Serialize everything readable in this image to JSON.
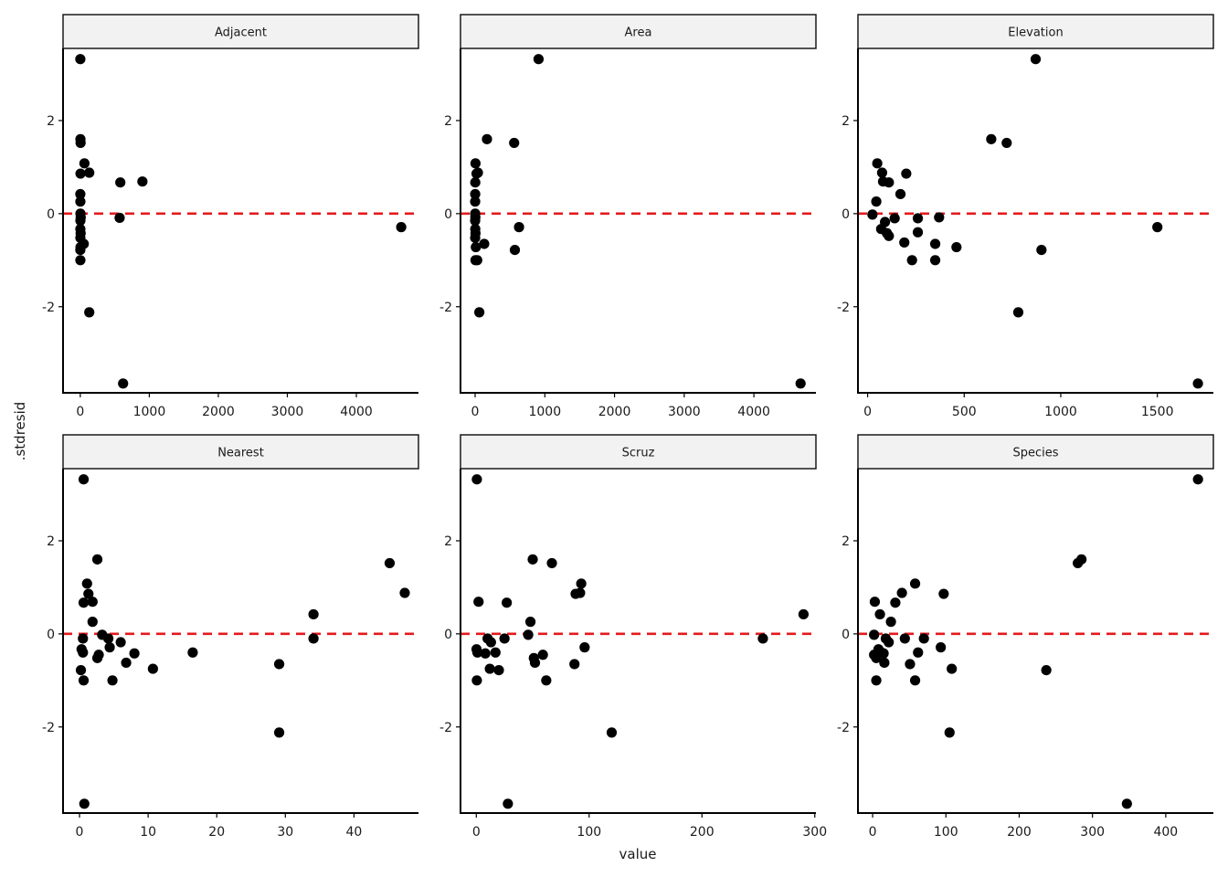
{
  "chart_data": {
    "type": "scatter",
    "xlabel": "value",
    "ylabel": ".stdresid",
    "ylim": [
      -3.85,
      3.55
    ],
    "y_ticks": [
      -2,
      0,
      2
    ],
    "y_tick_labels": [
      "-2",
      "0",
      "2"
    ],
    "reference_line": {
      "y": 0,
      "color": "#e31a1c",
      "style": "dashed"
    },
    "point_color": "#000000",
    "strip_color": "#f2f2f2",
    "grid": false,
    "facets": [
      {
        "label": "Adjacent",
        "xlim": [
          -250,
          4900
        ],
        "x_ticks": [
          0,
          1000,
          2000,
          3000,
          4000
        ],
        "x_tick_labels": [
          "0",
          "1000",
          "2000",
          "3000",
          "4000"
        ],
        "points": [
          [
            0.5,
            3.32
          ],
          [
            2,
            1.6
          ],
          [
            4,
            1.52
          ],
          [
            60,
            1.08
          ],
          [
            130,
            0.88
          ],
          [
            3,
            0.86
          ],
          [
            580,
            0.67
          ],
          [
            900,
            0.69
          ],
          [
            0.3,
            0.42
          ],
          [
            1,
            0.26
          ],
          [
            2,
            0.0
          ],
          [
            6,
            -0.08
          ],
          [
            570,
            -0.09
          ],
          [
            1.5,
            -0.15
          ],
          [
            0.8,
            -0.33
          ],
          [
            4650,
            -0.29
          ],
          [
            5,
            -0.42
          ],
          [
            1,
            -0.52
          ],
          [
            50,
            -0.65
          ],
          [
            3,
            -0.72
          ],
          [
            0.5,
            -0.78
          ],
          [
            1,
            -1.0
          ],
          [
            130,
            -2.12
          ],
          [
            620,
            -3.65
          ]
        ]
      },
      {
        "label": "Area",
        "xlim": [
          -210,
          4890
        ],
        "x_ticks": [
          0,
          1000,
          2000,
          3000,
          4000
        ],
        "x_tick_labels": [
          "0",
          "1000",
          "2000",
          "3000",
          "4000"
        ],
        "points": [
          [
            910,
            3.32
          ],
          [
            170,
            1.6
          ],
          [
            560,
            1.52
          ],
          [
            5,
            1.08
          ],
          [
            40,
            0.88
          ],
          [
            20,
            0.86
          ],
          [
            2,
            0.67
          ],
          [
            1,
            0.42
          ],
          [
            0.5,
            0.26
          ],
          [
            1,
            0.0
          ],
          [
            3,
            -0.08
          ],
          [
            0.2,
            -0.15
          ],
          [
            630,
            -0.29
          ],
          [
            2,
            -0.33
          ],
          [
            5,
            -0.42
          ],
          [
            0.5,
            -0.52
          ],
          [
            130,
            -0.65
          ],
          [
            10,
            -0.72
          ],
          [
            570,
            -0.78
          ],
          [
            5,
            -1.0
          ],
          [
            30,
            -1.0
          ],
          [
            60,
            -2.12
          ],
          [
            4670,
            -3.65
          ]
        ]
      },
      {
        "label": "Elevation",
        "xlim": [
          -50,
          1790
        ],
        "x_ticks": [
          0,
          500,
          1000,
          1500
        ],
        "x_tick_labels": [
          "0",
          "500",
          "1000",
          "1500"
        ],
        "points": [
          [
            870,
            3.32
          ],
          [
            640,
            1.6
          ],
          [
            720,
            1.52
          ],
          [
            50,
            1.08
          ],
          [
            75,
            0.88
          ],
          [
            200,
            0.86
          ],
          [
            80,
            0.69
          ],
          [
            110,
            0.67
          ],
          [
            170,
            0.42
          ],
          [
            45,
            0.26
          ],
          [
            25,
            -0.02
          ],
          [
            140,
            -0.1
          ],
          [
            260,
            -0.1
          ],
          [
            370,
            -0.08
          ],
          [
            90,
            -0.18
          ],
          [
            70,
            -0.33
          ],
          [
            100,
            -0.42
          ],
          [
            260,
            -0.4
          ],
          [
            1500,
            -0.29
          ],
          [
            110,
            -0.48
          ],
          [
            190,
            -0.62
          ],
          [
            350,
            -0.65
          ],
          [
            460,
            -0.72
          ],
          [
            900,
            -0.78
          ],
          [
            230,
            -1.0
          ],
          [
            350,
            -1.0
          ],
          [
            780,
            -2.12
          ],
          [
            1710,
            -3.65
          ]
        ]
      },
      {
        "label": "Nearest",
        "xlim": [
          -2.4,
          49.4
        ],
        "x_ticks": [
          0,
          10,
          20,
          30,
          40
        ],
        "x_tick_labels": [
          "0",
          "10",
          "20",
          "30",
          "40"
        ],
        "points": [
          [
            0.6,
            3.32
          ],
          [
            2.6,
            1.6
          ],
          [
            45.2,
            1.52
          ],
          [
            1.1,
            1.08
          ],
          [
            47.4,
            0.88
          ],
          [
            1.3,
            0.86
          ],
          [
            1.9,
            0.69
          ],
          [
            0.6,
            0.67
          ],
          [
            34.1,
            0.42
          ],
          [
            1.9,
            0.26
          ],
          [
            3.3,
            -0.02
          ],
          [
            0.5,
            -0.1
          ],
          [
            4.2,
            -0.1
          ],
          [
            34.1,
            -0.1
          ],
          [
            6,
            -0.18
          ],
          [
            4.4,
            -0.29
          ],
          [
            0.3,
            -0.33
          ],
          [
            0.5,
            -0.4
          ],
          [
            8,
            -0.42
          ],
          [
            16.5,
            -0.4
          ],
          [
            2.8,
            -0.45
          ],
          [
            2.6,
            -0.52
          ],
          [
            6.8,
            -0.62
          ],
          [
            29.1,
            -0.65
          ],
          [
            10.7,
            -0.75
          ],
          [
            0.2,
            -0.78
          ],
          [
            0.6,
            -1.0
          ],
          [
            4.8,
            -1.0
          ],
          [
            29.1,
            -2.12
          ],
          [
            0.7,
            -3.65
          ]
        ]
      },
      {
        "label": "Scruz",
        "xlim": [
          -14,
          301
        ],
        "x_ticks": [
          0,
          100,
          200,
          300
        ],
        "x_tick_labels": [
          "0",
          "100",
          "200",
          "300"
        ],
        "points": [
          [
            0.5,
            3.32
          ],
          [
            50,
            1.6
          ],
          [
            67,
            1.52
          ],
          [
            93,
            1.08
          ],
          [
            88,
            0.86
          ],
          [
            92,
            0.88
          ],
          [
            2,
            0.69
          ],
          [
            27,
            0.67
          ],
          [
            290,
            0.42
          ],
          [
            48,
            0.26
          ],
          [
            46,
            -0.02
          ],
          [
            10,
            -0.1
          ],
          [
            25,
            -0.1
          ],
          [
            254,
            -0.1
          ],
          [
            13,
            -0.18
          ],
          [
            96,
            -0.29
          ],
          [
            0.2,
            -0.33
          ],
          [
            1,
            -0.4
          ],
          [
            8,
            -0.42
          ],
          [
            17,
            -0.4
          ],
          [
            59,
            -0.45
          ],
          [
            51,
            -0.52
          ],
          [
            52,
            -0.62
          ],
          [
            87,
            -0.65
          ],
          [
            12,
            -0.75
          ],
          [
            20,
            -0.78
          ],
          [
            0.5,
            -1.0
          ],
          [
            62,
            -1.0
          ],
          [
            120,
            -2.12
          ],
          [
            28,
            -3.65
          ]
        ]
      },
      {
        "label": "Species",
        "xlim": [
          -20,
          465
        ],
        "x_ticks": [
          0,
          100,
          200,
          300,
          400
        ],
        "x_tick_labels": [
          "0",
          "100",
          "200",
          "300",
          "400"
        ],
        "points": [
          [
            444,
            3.32
          ],
          [
            285,
            1.6
          ],
          [
            280,
            1.52
          ],
          [
            58,
            1.08
          ],
          [
            97,
            0.86
          ],
          [
            40,
            0.88
          ],
          [
            3,
            0.69
          ],
          [
            31,
            0.67
          ],
          [
            10,
            0.42
          ],
          [
            25,
            0.26
          ],
          [
            2,
            -0.02
          ],
          [
            18,
            -0.1
          ],
          [
            44,
            -0.1
          ],
          [
            70,
            -0.1
          ],
          [
            22,
            -0.18
          ],
          [
            93,
            -0.29
          ],
          [
            8,
            -0.33
          ],
          [
            12,
            -0.4
          ],
          [
            15,
            -0.42
          ],
          [
            62,
            -0.4
          ],
          [
            2,
            -0.45
          ],
          [
            5,
            -0.52
          ],
          [
            16,
            -0.62
          ],
          [
            51,
            -0.65
          ],
          [
            108,
            -0.75
          ],
          [
            237,
            -0.78
          ],
          [
            5,
            -1.0
          ],
          [
            58,
            -1.0
          ],
          [
            105,
            -2.12
          ],
          [
            347,
            -3.65
          ]
        ]
      }
    ]
  }
}
